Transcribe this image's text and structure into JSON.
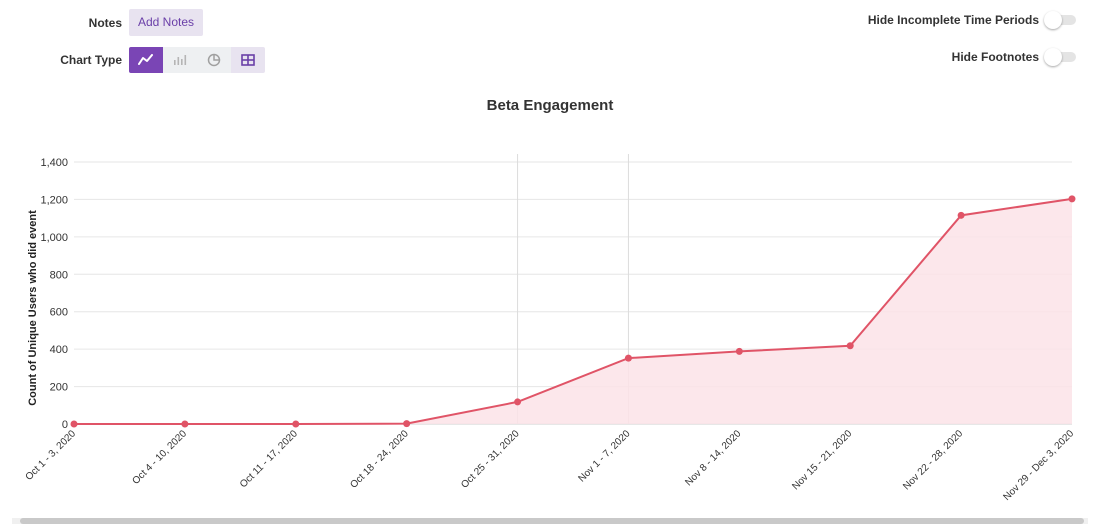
{
  "toolbar": {
    "notes_label": "Notes",
    "add_notes_label": "Add Notes",
    "chart_type_label": "Chart Type",
    "chart_type_options": [
      "line-chart-icon",
      "bar-chart-icon",
      "pie-chart-icon",
      "table-icon"
    ],
    "selected_chart_type": "line-chart-icon"
  },
  "toggles": {
    "hide_incomplete_label": "Hide Incomplete Time Periods",
    "hide_incomplete_on": false,
    "hide_footnotes_label": "Hide Footnotes",
    "hide_footnotes_on": false
  },
  "colors": {
    "accent": "#7a45b5",
    "series": "#e05467",
    "area_fill": "#fbe3e7"
  },
  "chart_data": {
    "type": "area",
    "title": "Beta Engagement",
    "xlabel": "",
    "ylabel": "Count of Unique Users who did event",
    "categories": [
      "Oct 1 - 3, 2020",
      "Oct 4 - 10, 2020",
      "Oct 11 - 17, 2020",
      "Oct 18 - 24, 2020",
      "Oct 25 - 31, 2020",
      "Nov 1 - 7, 2020",
      "Nov 8 - 14, 2020",
      "Nov 15 - 21, 2020",
      "Nov 22 - 28, 2020",
      "Nov 29 - Dec 3, 2020"
    ],
    "values": [
      0,
      0,
      0,
      2,
      118,
      352,
      388,
      418,
      1115,
      1203
    ],
    "ylim": [
      0,
      1400
    ],
    "yticks": [
      0,
      200,
      400,
      600,
      800,
      1000,
      1200,
      1400
    ],
    "ytick_labels": [
      "0",
      "200",
      "400",
      "600",
      "800",
      "1,000",
      "1,200",
      "1,400"
    ],
    "vertical_markers": [
      "Oct 25 - 31, 2020",
      "Nov 1 - 7, 2020"
    ],
    "grid": true,
    "legend": "none"
  }
}
